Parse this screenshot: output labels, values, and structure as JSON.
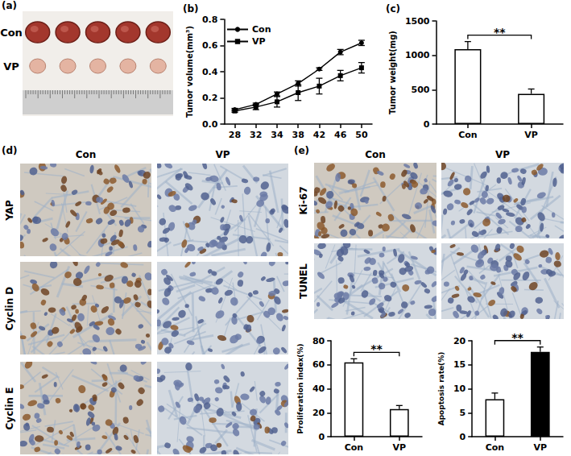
{
  "chart_data": [
    {
      "type": "line",
      "title": "(b)",
      "y_label": "Tumor volume(mm³)",
      "categories": [
        "28",
        "32",
        "34",
        "38",
        "42",
        "46",
        "50"
      ],
      "series": [
        {
          "name": "Con",
          "color": "#000000",
          "marker": "circle",
          "values": [
            0.11,
            0.15,
            0.23,
            0.31,
            0.42,
            0.55,
            0.62
          ],
          "errors": [
            0.01,
            0.01,
            0.015,
            0.02,
            0.01,
            0.02,
            0.02
          ]
        },
        {
          "name": "VP",
          "color": "#000000",
          "marker": "square",
          "values": [
            0.1,
            0.13,
            0.17,
            0.24,
            0.29,
            0.37,
            0.43
          ],
          "errors": [
            0.01,
            0.02,
            0.04,
            0.06,
            0.06,
            0.04,
            0.04
          ]
        }
      ],
      "ylim": [
        0,
        0.8
      ],
      "yticks": [
        {
          "value": 0,
          "label": "0.0"
        },
        0.2,
        0.4,
        0.6,
        0.8
      ],
      "grid": false,
      "legend": "upper left"
    },
    {
      "type": "bar",
      "title": "(c)",
      "y_label": "Tumor weight(mg)",
      "categories": [
        "Con",
        "VP"
      ],
      "values": [
        1090,
        440
      ],
      "errors": [
        110,
        70
      ],
      "colors": [
        "#ffffff",
        "#ffffff"
      ],
      "ylim": [
        0,
        1500
      ],
      "yticks": [
        0,
        500,
        1000,
        1500
      ],
      "grid": false,
      "annotation": "**"
    },
    {
      "type": "bar",
      "y_label": "Proliferation index(%)",
      "categories": [
        "Con",
        "VP"
      ],
      "values": [
        62,
        23
      ],
      "errors": [
        3,
        3
      ],
      "colors": [
        "#ffffff",
        "#ffffff"
      ],
      "ylim": [
        0,
        80
      ],
      "yticks": [
        0,
        20,
        40,
        60,
        80
      ],
      "grid": false,
      "annotation": "**"
    },
    {
      "type": "bar",
      "y_label": "Apoptosis rate(%)",
      "categories": [
        "Con",
        "VP"
      ],
      "values": [
        7.8,
        17.7
      ],
      "errors": [
        1.3,
        1.0
      ],
      "colors": [
        "#ffffff",
        "#000000"
      ],
      "ylim": [
        0,
        20
      ],
      "yticks": [
        0,
        5,
        10,
        15,
        20
      ],
      "grid": false,
      "annotation": "**"
    }
  ],
  "panels": {
    "a": {
      "label": "(a)",
      "rows": [
        "Con",
        "VP"
      ]
    },
    "d": {
      "label": "(d)",
      "columns": [
        "Con",
        "VP"
      ],
      "rows": [
        "YAP",
        "Cyclin D",
        "Cyclin E"
      ]
    },
    "e": {
      "label": "(e)",
      "columns": [
        "Con",
        "VP"
      ],
      "rows": [
        "Ki-67",
        "TUNEL"
      ]
    }
  }
}
